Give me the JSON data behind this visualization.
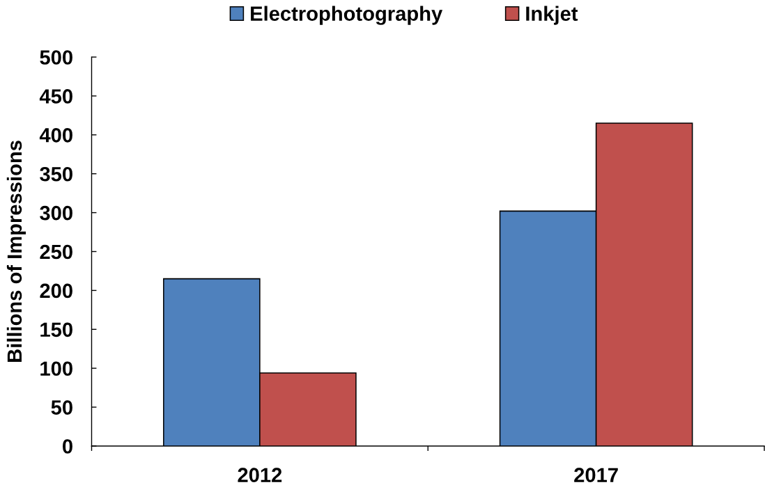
{
  "chart_data": {
    "type": "bar",
    "categories": [
      "2012",
      "2017"
    ],
    "series": [
      {
        "name": "Electrophotography",
        "color": "#4f81bd",
        "values": [
          215,
          302
        ]
      },
      {
        "name": "Inkjet",
        "color": "#c0504d",
        "values": [
          94,
          415
        ]
      }
    ],
    "ylabel": "Billions of Impressions",
    "ylim": [
      0,
      500
    ],
    "yticks": [
      0,
      50,
      100,
      150,
      200,
      250,
      300,
      350,
      400,
      450,
      500
    ],
    "grid": false,
    "legend": "top"
  }
}
